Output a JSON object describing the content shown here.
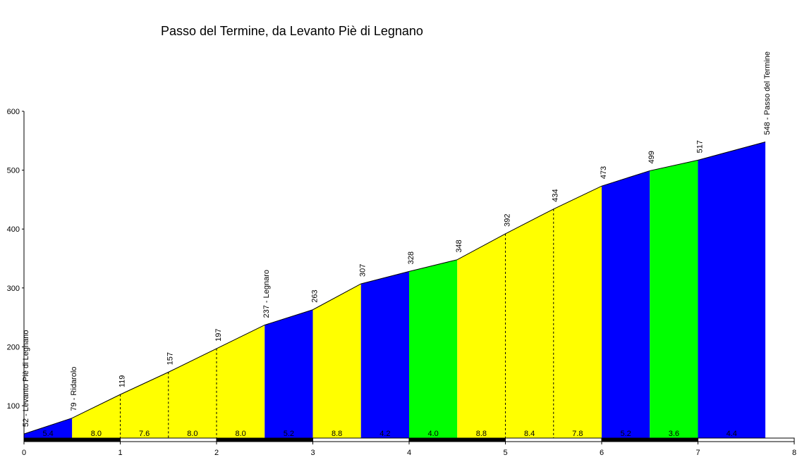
{
  "chart_data": {
    "type": "area",
    "title": "Passo del Termine, da Levanto Piè di Legnano",
    "xlabel": "",
    "ylabel": "",
    "xlim": [
      0,
      8
    ],
    "ylim": [
      45,
      600
    ],
    "x_ticks": [
      "0",
      "1",
      "2",
      "3",
      "4",
      "5",
      "6",
      "7",
      "8"
    ],
    "y_ticks": [
      "100",
      "200",
      "300",
      "400",
      "500",
      "600"
    ],
    "profile": [
      {
        "x": 0.0,
        "y": 52,
        "label": "52 - Levanto Piè di Legnano"
      },
      {
        "x": 0.5,
        "y": 79,
        "label": "79 - Ridarolo"
      },
      {
        "x": 1.0,
        "y": 119,
        "label": "119"
      },
      {
        "x": 1.5,
        "y": 157,
        "label": "157"
      },
      {
        "x": 2.0,
        "y": 197,
        "label": "197"
      },
      {
        "x": 2.5,
        "y": 237,
        "label": "237 - Legnaro"
      },
      {
        "x": 3.0,
        "y": 263,
        "label": "263"
      },
      {
        "x": 3.5,
        "y": 307,
        "label": "307"
      },
      {
        "x": 4.0,
        "y": 328,
        "label": "328"
      },
      {
        "x": 4.5,
        "y": 348,
        "label": "348"
      },
      {
        "x": 5.0,
        "y": 392,
        "label": "392"
      },
      {
        "x": 5.5,
        "y": 434,
        "label": "434"
      },
      {
        "x": 6.0,
        "y": 473,
        "label": "473"
      },
      {
        "x": 6.5,
        "y": 499,
        "label": "499"
      },
      {
        "x": 7.0,
        "y": 517,
        "label": "517"
      },
      {
        "x": 7.7,
        "y": 548,
        "label": "548 - Passo del Termine"
      }
    ],
    "segments": [
      {
        "gradient": "5.4",
        "color": "#0000ff"
      },
      {
        "gradient": "8.0",
        "color": "#ffff00"
      },
      {
        "gradient": "7.6",
        "color": "#ffff00"
      },
      {
        "gradient": "8.0",
        "color": "#ffff00"
      },
      {
        "gradient": "8.0",
        "color": "#ffff00"
      },
      {
        "gradient": "5.2",
        "color": "#0000ff"
      },
      {
        "gradient": "8.8",
        "color": "#ffff00"
      },
      {
        "gradient": "4.2",
        "color": "#0000ff"
      },
      {
        "gradient": "4.0",
        "color": "#00ff00"
      },
      {
        "gradient": "8.8",
        "color": "#ffff00"
      },
      {
        "gradient": "8.4",
        "color": "#ffff00"
      },
      {
        "gradient": "7.8",
        "color": "#ffff00"
      },
      {
        "gradient": "5.2",
        "color": "#0000ff"
      },
      {
        "gradient": "3.6",
        "color": "#00ff00"
      },
      {
        "gradient": "4.4",
        "color": "#0000ff"
      }
    ]
  }
}
